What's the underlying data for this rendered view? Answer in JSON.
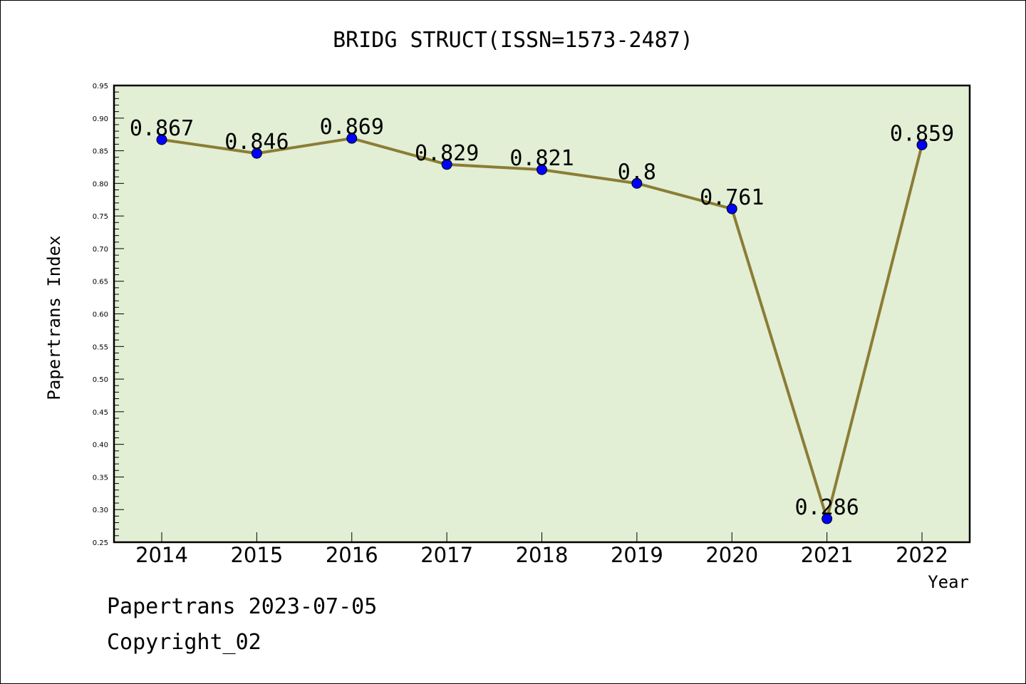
{
  "chart_data": {
    "type": "line",
    "title": "BRIDG STRUCT(ISSN=1573-2487)",
    "xlabel": "Year",
    "ylabel": "Papertrans Index",
    "categories": [
      "2014",
      "2015",
      "2016",
      "2017",
      "2018",
      "2019",
      "2020",
      "2021",
      "2022"
    ],
    "series": [
      {
        "values": [
          0.867,
          0.846,
          0.869,
          0.829,
          0.821,
          0.8,
          0.761,
          0.286,
          0.859
        ],
        "labels": [
          "0.867",
          "0.846",
          "0.869",
          "0.829",
          "0.821",
          "0.8",
          "0.761",
          "0.286",
          "0.859"
        ]
      }
    ],
    "ylim": [
      0.25,
      0.95
    ],
    "yticks": [
      "0.25",
      "0.30",
      "0.35",
      "0.40",
      "0.45",
      "0.50",
      "0.55",
      "0.60",
      "0.65",
      "0.70",
      "0.75",
      "0.80",
      "0.85",
      "0.90",
      "0.95"
    ],
    "grid": false,
    "colors": {
      "plot_background": "#e2efd5",
      "line": "#8b7d35",
      "marker": "#0000ff"
    }
  },
  "footer": {
    "date_line": "Papertrans 2023-07-05",
    "copyright_line": "Copyright_02"
  }
}
